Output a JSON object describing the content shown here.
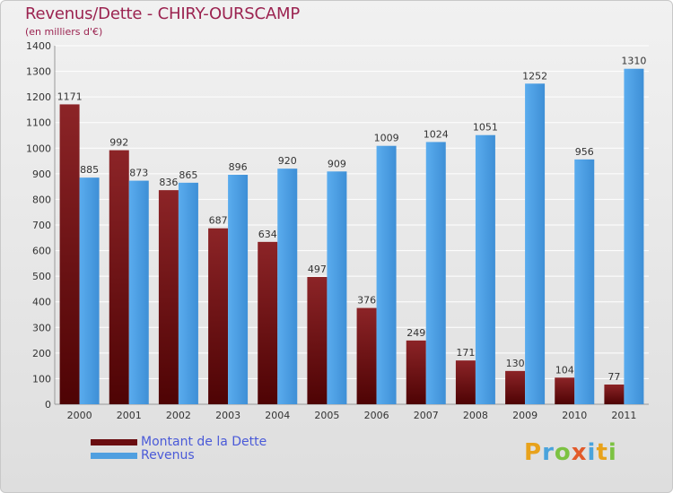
{
  "title": "Revenus/Dette - CHIRY-OURSCAMP",
  "subtitle": "(en milliers d'€)",
  "logo_letters": [
    "P",
    "r",
    "o",
    "x",
    "i",
    "t",
    "i"
  ],
  "colors": {
    "debt": "#7a1518",
    "revenue": "#4f9fe0",
    "title": "#9b2350",
    "legend_text": "#4a5ad8"
  },
  "chart_data": {
    "type": "bar",
    "title": "Revenus/Dette - CHIRY-OURSCAMP",
    "ylabel": "(en milliers d'€)",
    "xlabel": "",
    "ylim": [
      0,
      1400
    ],
    "yticks": [
      0,
      100,
      200,
      300,
      400,
      500,
      600,
      700,
      800,
      900,
      1000,
      1100,
      1200,
      1300,
      1400
    ],
    "grid": true,
    "legend_position": "bottom-left",
    "categories": [
      "2000",
      "2001",
      "2002",
      "2003",
      "2004",
      "2005",
      "2006",
      "2007",
      "2008",
      "2009",
      "2010",
      "2011"
    ],
    "series": [
      {
        "name": "Montant de la Dette",
        "values": [
          1171,
          992,
          836,
          687,
          634,
          497,
          376,
          249,
          171,
          130,
          104,
          77
        ]
      },
      {
        "name": "Revenus",
        "values": [
          885,
          873,
          865,
          896,
          920,
          909,
          1009,
          1024,
          1051,
          1252,
          956,
          1310
        ]
      }
    ]
  }
}
